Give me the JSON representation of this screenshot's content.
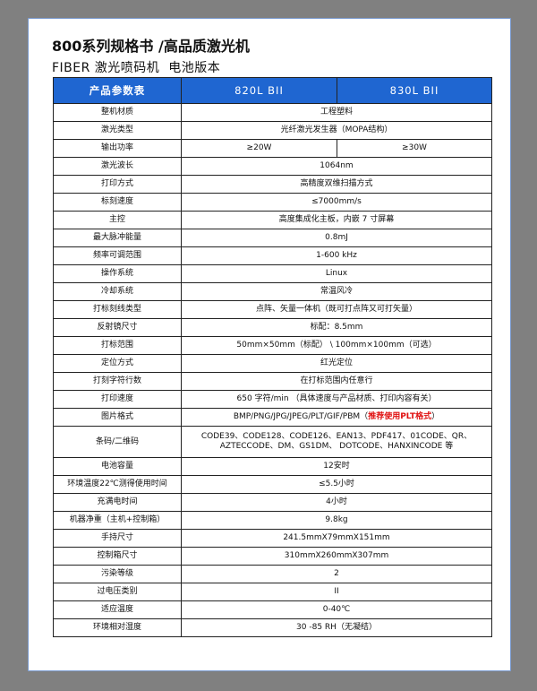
{
  "title": "800系列规格书 /高品质激光机",
  "subtitle": "FIBER 激光喷码机  电池版本",
  "header": [
    "产品参数表",
    "820L BII",
    "830L BII"
  ],
  "rows": [
    {
      "k": "整机材质",
      "v": "工程塑料"
    },
    {
      "k": "激光类型",
      "v": "光纤激光发生器（MOPA结构）"
    },
    {
      "k": "输出功率",
      "v1": "≥20W",
      "v2": "≥30W"
    },
    {
      "k": "激光波长",
      "v": "1064nm"
    },
    {
      "k": "打印方式",
      "v": "高精度双维扫描方式"
    },
    {
      "k": "标刻速度",
      "v": "≤7000mm/s"
    },
    {
      "k": "主控",
      "v": "高度集成化主板，内嵌 7 寸屏幕"
    },
    {
      "k": "最大脉冲能量",
      "v": "0.8mJ"
    },
    {
      "k": "频率可调范围",
      "v": "1-600 kHz"
    },
    {
      "k": "操作系统",
      "v": "Linux"
    },
    {
      "k": "冷却系统",
      "v": "常温风冷"
    },
    {
      "k": "打标刻线类型",
      "v": "点阵、矢量一体机（既可打点阵又可打矢量）"
    },
    {
      "k": "反射镜尺寸",
      "v": "标配：8.5mm"
    },
    {
      "k": "打标范围",
      "v": "50mm×50mm（标配） \\ 100mm×100mm（可选）"
    },
    {
      "k": "定位方式",
      "v": "红光定位"
    },
    {
      "k": "打刻字符行数",
      "v": "在打标范围内任意行"
    },
    {
      "k": "打印速度",
      "v": "650 字符/min （具体速度与产品材质、打印内容有关）"
    },
    {
      "k": "图片格式",
      "v": "BMP/PNG/JPG/JPEG/PLT/GIF/PBM（",
      "red": "推荐使用PLT格式",
      "tail": "）"
    },
    {
      "k": "条码/二维码",
      "v": "CODE39、CODE128、CODE126、EAN13、PDF417、01CODE、QR、AZTECCODE、DM、GS1DM、 DOTCODE、HANXINCODE 等"
    },
    {
      "k": "电池容量",
      "v": "12安时"
    },
    {
      "k": "环境温度22℃测得使用时间",
      "v": "≤5.5小时"
    },
    {
      "k": "充满电时间",
      "v": "4小时"
    },
    {
      "k": "机器净重（主机+控制箱）",
      "v": "9.8kg"
    },
    {
      "k": "手持尺寸",
      "v": "241.5mmX79mmX151mm"
    },
    {
      "k": "控制箱尺寸",
      "v": "310mmX260mmX307mm"
    },
    {
      "k": "污染等级",
      "v": "2"
    },
    {
      "k": "过电压类别",
      "v": "II"
    },
    {
      "k": "适应温度",
      "v": "0-40℃"
    },
    {
      "k": "环境相对湿度",
      "v": "30 -85  RH（无凝结）"
    }
  ],
  "colors": {
    "header_bg": "#1f66d1",
    "highlight": "#e01010"
  }
}
